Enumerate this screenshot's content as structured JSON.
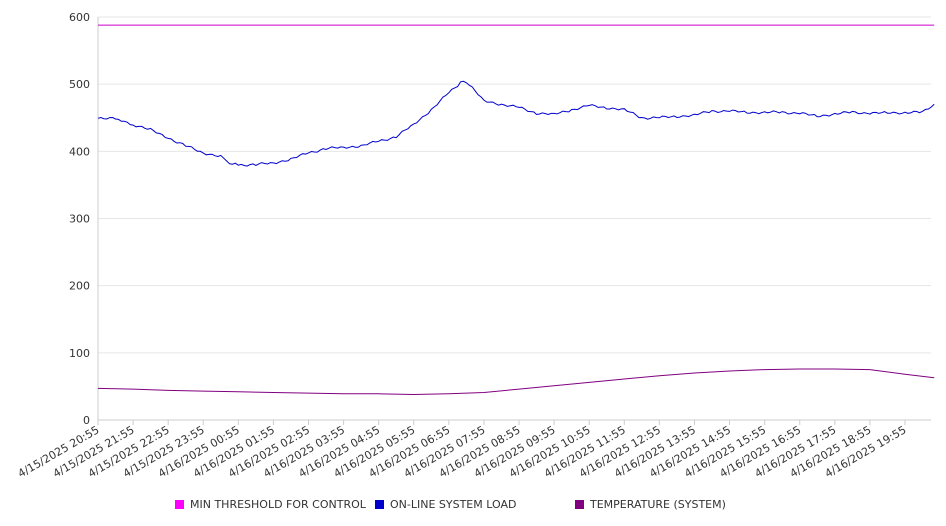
{
  "chart_data": {
    "type": "line",
    "ylim": [
      0,
      600
    ],
    "y_ticks": [
      "0",
      "100",
      "200",
      "300",
      "400",
      "500",
      "600"
    ],
    "x_tick_labels": [
      "4/15/2025 20:55",
      "4/15/2025 21:55",
      "4/15/2025 22:55",
      "4/15/2025 23:55",
      "4/16/2025 00:55",
      "4/16/2025 01:55",
      "4/16/2025 02:55",
      "4/16/2025 03:55",
      "4/16/2025 04:55",
      "4/16/2025 05:55",
      "4/16/2025 06:55",
      "4/16/2025 07:55",
      "4/16/2025 08:55",
      "4/16/2025 09:55",
      "4/16/2025 10:55",
      "4/16/2025 11:55",
      "4/16/2025 12:55",
      "4/16/2025 13:55",
      "4/16/2025 14:55",
      "4/16/2025 15:55",
      "4/16/2025 16:55",
      "4/16/2025 17:55",
      "4/16/2025 18:55",
      "4/16/2025 19:55"
    ],
    "grid": true,
    "legend_position": "bottom",
    "series": [
      {
        "name": "MIN THRESHOLD FOR CONTROL",
        "color": "#cc00cc",
        "x": [
          "4/15/2025 20:55",
          "4/16/2025 20:45"
        ],
        "values": [
          588,
          588
        ]
      },
      {
        "name": "ON-LINE SYSTEM LOAD",
        "color": "#0000cc",
        "x": [
          "4/15/2025 20:55",
          "4/15/2025 21:30",
          "4/15/2025 21:55",
          "4/15/2025 22:25",
          "4/15/2025 22:55",
          "4/15/2025 23:25",
          "4/15/2025 23:55",
          "4/16/2025 00:25",
          "4/16/2025 00:40",
          "4/16/2025 00:55",
          "4/16/2025 01:25",
          "4/16/2025 01:55",
          "4/16/2025 02:25",
          "4/16/2025 02:55",
          "4/16/2025 03:25",
          "4/16/2025 03:55",
          "4/16/2025 04:25",
          "4/16/2025 04:55",
          "4/16/2025 05:25",
          "4/16/2025 05:55",
          "4/16/2025 06:25",
          "4/16/2025 06:55",
          "4/16/2025 07:15",
          "4/16/2025 07:25",
          "4/16/2025 07:55",
          "4/16/2025 08:25",
          "4/16/2025 08:55",
          "4/16/2025 09:25",
          "4/16/2025 09:55",
          "4/16/2025 10:25",
          "4/16/2025 10:55",
          "4/16/2025 11:25",
          "4/16/2025 11:55",
          "4/16/2025 12:25",
          "4/16/2025 12:55",
          "4/16/2025 13:25",
          "4/16/2025 13:55",
          "4/16/2025 14:25",
          "4/16/2025 14:55",
          "4/16/2025 15:25",
          "4/16/2025 15:55",
          "4/16/2025 16:25",
          "4/16/2025 16:55",
          "4/16/2025 17:25",
          "4/16/2025 17:55",
          "4/16/2025 18:25",
          "4/16/2025 18:55",
          "4/16/2025 19:25",
          "4/16/2025 19:55",
          "4/16/2025 20:25",
          "4/16/2025 20:45"
        ],
        "values": [
          450,
          448,
          440,
          432,
          420,
          408,
          398,
          392,
          383,
          380,
          380,
          383,
          388,
          398,
          404,
          406,
          408,
          415,
          422,
          440,
          462,
          487,
          502,
          504,
          475,
          470,
          465,
          457,
          455,
          462,
          468,
          465,
          462,
          450,
          450,
          452,
          454,
          460,
          460,
          458,
          458,
          458,
          457,
          452,
          456,
          458,
          457,
          457,
          458,
          458,
          470
        ]
      },
      {
        "name": "TEMPERATURE (SYSTEM)",
        "color": "#800080",
        "x": [
          "4/15/2025 20:55",
          "4/15/2025 21:55",
          "4/15/2025 22:55",
          "4/15/2025 23:55",
          "4/16/2025 00:55",
          "4/16/2025 01:55",
          "4/16/2025 02:55",
          "4/16/2025 03:55",
          "4/16/2025 04:55",
          "4/16/2025 05:55",
          "4/16/2025 06:55",
          "4/16/2025 07:55",
          "4/16/2025 08:55",
          "4/16/2025 09:55",
          "4/16/2025 10:55",
          "4/16/2025 11:55",
          "4/16/2025 12:55",
          "4/16/2025 13:55",
          "4/16/2025 14:55",
          "4/16/2025 15:55",
          "4/16/2025 16:55",
          "4/16/2025 17:55",
          "4/16/2025 18:55",
          "4/16/2025 19:55",
          "4/16/2025 20:45"
        ],
        "values": [
          47,
          46,
          44,
          43,
          42,
          41,
          40,
          39,
          39,
          38,
          39,
          41,
          46,
          51,
          56,
          61,
          66,
          70,
          73,
          75,
          76,
          76,
          75,
          68,
          63
        ]
      }
    ]
  },
  "legend": {
    "items": [
      {
        "label": "MIN THRESHOLD FOR CONTROL",
        "color": "#cc00cc"
      },
      {
        "label": "ON-LINE SYSTEM LOAD",
        "color": "#0000cc"
      },
      {
        "label": "TEMPERATURE (SYSTEM)",
        "color": "#800080"
      }
    ]
  }
}
